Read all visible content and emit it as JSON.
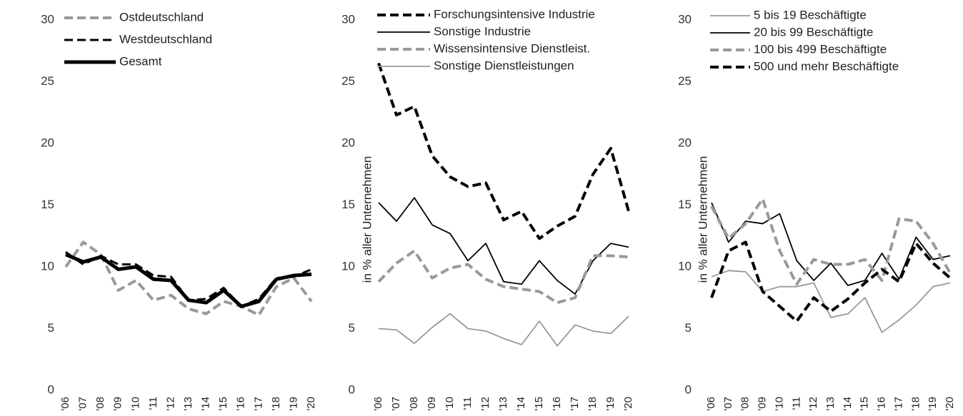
{
  "chart_data": [
    {
      "type": "line",
      "categories": [
        "'06",
        "'07",
        "'08",
        "'09",
        "'10",
        "'11",
        "'12",
        "'13",
        "'14",
        "'15",
        "'16",
        "'17",
        "'18",
        "'19",
        "'20"
      ],
      "ylim": [
        0,
        30
      ],
      "yticks": [
        0,
        5,
        10,
        15,
        20,
        25,
        30
      ],
      "legend": "top-left",
      "series": [
        {
          "name": "Ostdeutschland",
          "color": "#999999",
          "dash": true,
          "width": 4,
          "values": [
            10,
            12,
            11,
            8.1,
            8.9,
            7.3,
            7.7,
            6.6,
            6.2,
            7.2,
            6.8,
            6.1,
            8.4,
            9.1,
            7.2
          ]
        },
        {
          "name": "Westdeutschland",
          "color": "#000000",
          "dash": true,
          "width": 3,
          "values": [
            11.2,
            10.2,
            10.9,
            10.2,
            10.2,
            9.3,
            9.2,
            7.3,
            7.4,
            8.3,
            6.8,
            7.4,
            9.1,
            9.2,
            9.8
          ]
        },
        {
          "name": "Gesamt",
          "color": "#000000",
          "dash": false,
          "width": 5,
          "values": [
            11.0,
            10.4,
            10.8,
            9.8,
            10.0,
            9.0,
            8.9,
            7.3,
            7.1,
            8.1,
            6.8,
            7.2,
            9.0,
            9.3,
            9.4
          ]
        }
      ]
    },
    {
      "type": "line",
      "ylabel": "in % aller Unternehmen",
      "categories": [
        "'06",
        "'07",
        "'08",
        "'09",
        "'10",
        "'11",
        "'12",
        "'13",
        "'14",
        "'15",
        "'16",
        "'17",
        "'18",
        "'19",
        "'20"
      ],
      "ylim": [
        0,
        30
      ],
      "yticks": [
        0,
        5,
        10,
        15,
        20,
        25,
        30
      ],
      "legend": "top-left",
      "series": [
        {
          "name": "Forschungsintensive Industrie",
          "color": "#000000",
          "dash": true,
          "width": 4,
          "values": [
            26.5,
            22.3,
            23.0,
            19.0,
            17.3,
            16.5,
            16.8,
            13.8,
            14.5,
            12.3,
            13.3,
            14.1,
            17.5,
            19.6,
            14.5
          ]
        },
        {
          "name": "Sonstige Industrie",
          "color": "#000000",
          "dash": false,
          "width": 1.8,
          "values": [
            15.2,
            13.7,
            15.6,
            13.4,
            12.7,
            10.5,
            11.9,
            8.8,
            8.6,
            10.5,
            8.9,
            7.8,
            10.5,
            11.9,
            11.6
          ]
        },
        {
          "name": "Wissensintensive Dienstleist.",
          "color": "#999999",
          "dash": true,
          "width": 4,
          "values": [
            8.8,
            10.3,
            11.3,
            9.1,
            9.9,
            10.2,
            9.0,
            8.4,
            8.2,
            8.0,
            7.1,
            7.5,
            10.9,
            10.9,
            10.8
          ]
        },
        {
          "name": "Sonstige Dienstleistungen",
          "color": "#999999",
          "dash": false,
          "width": 1.8,
          "values": [
            5.0,
            4.9,
            3.8,
            5.1,
            6.2,
            5.0,
            4.8,
            4.2,
            3.7,
            5.6,
            3.6,
            5.3,
            4.8,
            4.6,
            6.0
          ]
        }
      ]
    },
    {
      "type": "line",
      "ylabel": "in % aller Unternehmen",
      "categories": [
        "'06",
        "'07",
        "'08",
        "'09",
        "'10",
        "'11",
        "'12",
        "'13",
        "'14",
        "'15",
        "'16",
        "'17",
        "'18",
        "'19",
        "'20"
      ],
      "ylim": [
        0,
        30
      ],
      "yticks": [
        0,
        5,
        10,
        15,
        20,
        25,
        30
      ],
      "legend": "top-left",
      "series": [
        {
          "name": "5 bis 19 Beschäftigte",
          "color": "#999999",
          "dash": false,
          "width": 1.8,
          "values": [
            9.2,
            9.7,
            9.6,
            8.0,
            8.4,
            8.4,
            8.7,
            5.9,
            6.2,
            7.5,
            4.7,
            5.7,
            6.9,
            8.4,
            8.7
          ]
        },
        {
          "name": "20 bis 99 Beschäftigte",
          "color": "#000000",
          "dash": false,
          "width": 1.8,
          "values": [
            15.2,
            12.0,
            13.7,
            13.5,
            14.3,
            10.5,
            8.9,
            10.3,
            8.5,
            8.9,
            11.1,
            9.0,
            12.4,
            10.6,
            10.9
          ]
        },
        {
          "name": "100 bis 499 Beschäftigte",
          "color": "#999999",
          "dash": true,
          "width": 4,
          "values": [
            14.9,
            12.3,
            13.5,
            15.5,
            11.3,
            8.6,
            10.6,
            10.2,
            10.2,
            10.6,
            8.9,
            13.9,
            13.7,
            11.9,
            9.5
          ]
        },
        {
          "name": "500 und mehr Beschäftigte",
          "color": "#000000",
          "dash": true,
          "width": 4,
          "values": [
            7.5,
            11.3,
            12.0,
            8.0,
            6.8,
            5.6,
            7.5,
            6.4,
            7.4,
            8.7,
            9.8,
            8.8,
            11.9,
            10.3,
            9.1
          ]
        }
      ]
    }
  ]
}
